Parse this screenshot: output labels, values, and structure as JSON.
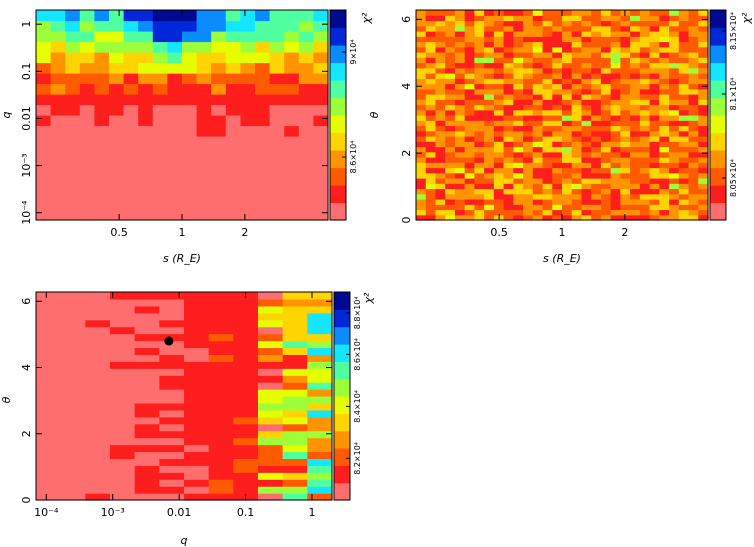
{
  "figure": {
    "background": "#ffffff"
  },
  "colormap": [
    "#ff6e6e",
    "#ff1e1e",
    "#ff5a00",
    "#ff9400",
    "#ffd400",
    "#e6ff00",
    "#9cff3a",
    "#50ffa0",
    "#14e6ff",
    "#0a8cff",
    "#0028d8",
    "#000a90"
  ],
  "chart_data": [
    {
      "id": "panel-s-q",
      "type": "heatmap",
      "xlabel": "s (R_E)",
      "ylabel": "q",
      "xscale": "log",
      "yscale": "log",
      "xlim": [
        0.2,
        5.0
      ],
      "ylim": [
        7e-05,
        2.0
      ],
      "xticks": [
        {
          "v": 0.5,
          "label": "0.5"
        },
        {
          "v": 1,
          "label": "1"
        },
        {
          "v": 2,
          "label": "2"
        }
      ],
      "yticks": [
        {
          "v": 0.0001,
          "label": "10⁻⁴"
        },
        {
          "v": 0.001,
          "label": "10⁻³"
        },
        {
          "v": 0.01,
          "label": "0.01"
        },
        {
          "v": 0.1,
          "label": "0.1"
        },
        {
          "v": 1,
          "label": "1"
        }
      ],
      "colorbar": {
        "label": "χ²",
        "ticks": [
          {
            "v": 0.3,
            "label": "8.6×10⁴"
          },
          {
            "v": 0.8,
            "label": "9×10⁴"
          }
        ]
      },
      "nx": 20,
      "ny": 20,
      "description": "chi-squared grid, low values (red) at small q, high values (green/blue) at q > 0.1"
    },
    {
      "id": "panel-s-theta",
      "type": "heatmap",
      "xlabel": "s (R_E)",
      "ylabel": "θ",
      "xscale": "log",
      "yscale": "linear",
      "xlim": [
        0.2,
        5.0
      ],
      "ylim": [
        0,
        6.28
      ],
      "xticks": [
        {
          "v": 0.5,
          "label": "0.5"
        },
        {
          "v": 1,
          "label": "1"
        },
        {
          "v": 2,
          "label": "2"
        }
      ],
      "yticks": [
        {
          "v": 0,
          "label": "0"
        },
        {
          "v": 2,
          "label": "2"
        },
        {
          "v": 4,
          "label": "4"
        },
        {
          "v": 6,
          "label": "6"
        }
      ],
      "colorbar": {
        "label": "χ²",
        "ticks": [
          {
            "v": 0.2,
            "label": "8.05×10⁴"
          },
          {
            "v": 0.6,
            "label": "8.1×10⁴"
          },
          {
            "v": 0.9,
            "label": "8.15×10⁴"
          }
        ]
      },
      "nx": 30,
      "ny": 40,
      "description": "chi-squared grid, mostly red/orange with scattered yellow near s = 1"
    },
    {
      "id": "panel-q-theta",
      "type": "heatmap",
      "xlabel": "q",
      "ylabel": "θ",
      "xscale": "log",
      "yscale": "linear",
      "xlim": [
        7e-05,
        2.0
      ],
      "ylim": [
        0,
        6.28
      ],
      "xticks": [
        {
          "v": 0.0001,
          "label": "10⁻⁴"
        },
        {
          "v": 0.001,
          "label": "10⁻³"
        },
        {
          "v": 0.01,
          "label": "0.01"
        },
        {
          "v": 0.1,
          "label": "0.1"
        },
        {
          "v": 1,
          "label": "1"
        }
      ],
      "yticks": [
        {
          "v": 0,
          "label": "0"
        },
        {
          "v": 2,
          "label": "2"
        },
        {
          "v": 4,
          "label": "4"
        },
        {
          "v": 6,
          "label": "6"
        }
      ],
      "colorbar": {
        "label": "χ²",
        "ticks": [
          {
            "v": 0.2,
            "label": "8.2×10⁴"
          },
          {
            "v": 0.45,
            "label": "8.4×10⁴"
          },
          {
            "v": 0.7,
            "label": "8.6×10⁴"
          },
          {
            "v": 0.9,
            "label": "8.8×10⁴"
          }
        ]
      },
      "nx": 12,
      "ny": 30,
      "marker": {
        "q": 0.007,
        "theta": 4.8
      },
      "description": "chi-squared grid, uniformly low (red) for q < 0.05, high and variable for q > 0.1"
    }
  ]
}
